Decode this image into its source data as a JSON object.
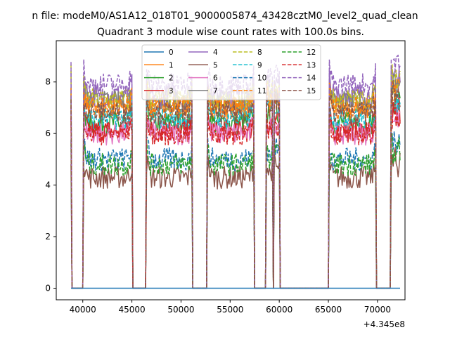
{
  "chart_data": {
    "type": "line",
    "suptitle": "n file: modeM0/AS1A12_018T01_9000005874_43428cztM0_level2_quad_clean",
    "title": "Quadrant 3 module wise count rates with 100.0s bins.",
    "xlabel": "",
    "ylabel": "",
    "x_offset_label": "+4.345e8",
    "xlim": [
      37300,
      72800
    ],
    "ylim": [
      -0.45,
      9.6
    ],
    "xticks": [
      40000,
      45000,
      50000,
      55000,
      60000,
      65000,
      70000
    ],
    "yticks": [
      0,
      2,
      4,
      6,
      8
    ],
    "grid": false,
    "legend": {
      "placement": "top-center",
      "columns": 4
    },
    "bin_seconds": 100,
    "active_segments": [
      [
        38800,
        38850
      ],
      [
        40100,
        45000
      ],
      [
        46500,
        51150
      ],
      [
        52700,
        57400
      ],
      [
        58650,
        59300
      ],
      [
        59500,
        60000
      ],
      [
        65100,
        69800
      ],
      [
        71350,
        72300
      ]
    ],
    "series": [
      {
        "name": "0",
        "style": "solid",
        "color": "#1f77b4",
        "level": 0.0
      },
      {
        "name": "1",
        "style": "solid",
        "color": "#ff7f0e",
        "level": 7.0
      },
      {
        "name": "2",
        "style": "solid",
        "color": "#2ca02c",
        "level": 6.4
      },
      {
        "name": "3",
        "style": "solid",
        "color": "#d62728",
        "level": 6.1
      },
      {
        "name": "4",
        "style": "solid",
        "color": "#9467bd",
        "level": 7.5
      },
      {
        "name": "5",
        "style": "solid",
        "color": "#8c564b",
        "level": 4.3
      },
      {
        "name": "6",
        "style": "solid",
        "color": "#e377c2",
        "level": 6.0
      },
      {
        "name": "7",
        "style": "solid",
        "color": "#7f7f7f",
        "level": 7.2
      },
      {
        "name": "8",
        "style": "dashed",
        "color": "#bcbd22",
        "level": 7.3
      },
      {
        "name": "9",
        "style": "dashed",
        "color": "#17becf",
        "level": 6.6
      },
      {
        "name": "10",
        "style": "dashed",
        "color": "#1f77b4",
        "level": 5.0
      },
      {
        "name": "11",
        "style": "dashed",
        "color": "#ff7f0e",
        "level": 7.0
      },
      {
        "name": "12",
        "style": "dashed",
        "color": "#2ca02c",
        "level": 4.8
      },
      {
        "name": "13",
        "style": "dashed",
        "color": "#d62728",
        "level": 6.0
      },
      {
        "name": "14",
        "style": "dashed",
        "color": "#9467bd",
        "level": 7.9
      },
      {
        "name": "15",
        "style": "dashed",
        "color": "#8c564b",
        "level": 6.8
      }
    ]
  }
}
